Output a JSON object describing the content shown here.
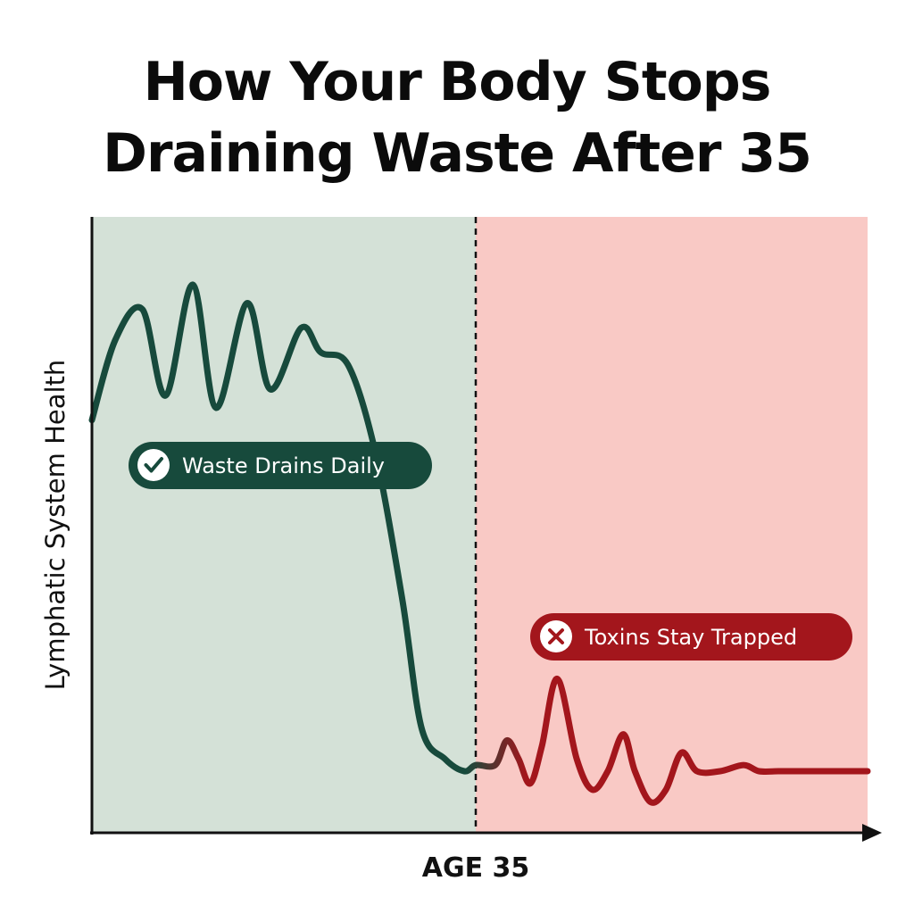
{
  "title_lines": [
    "How Your Body Stops",
    "Draining Waste After 35"
  ],
  "colors": {
    "healthy_zone": "#d4e1d7",
    "decline_zone": "#f9c9c5",
    "healthy_line": "#174a3c",
    "decline_line": "#a3161c",
    "healthy_pill": "#174a3c",
    "decline_pill": "#a3161c",
    "axis": "#111111"
  },
  "icons": [
    "check-circle-icon",
    "x-circle-icon"
  ],
  "chart_data": {
    "type": "line",
    "title": "How Your Body Stops Draining Waste After 35",
    "xlabel": "AGE 35",
    "ylabel": "Lymphatic System Health",
    "marker_label": "AGE 35",
    "grid": false,
    "regions": [
      {
        "name": "before",
        "label": "Waste Drains Daily",
        "icon": "check-circle-icon"
      },
      {
        "name": "after",
        "label": "Toxins Stay Trapped",
        "icon": "x-circle-icon"
      }
    ],
    "series": [
      {
        "x": [
          0,
          0.03,
          0.065,
          0.095,
          0.13,
          0.16,
          0.2,
          0.23,
          0.27,
          0.295,
          0.33,
          0.365,
          0.4,
          0.425,
          0.455,
          0.48,
          0.495,
          0.52,
          0.535,
          0.55,
          0.565,
          0.58,
          0.6,
          0.625,
          0.645,
          0.665,
          0.685,
          0.7,
          0.72,
          0.74,
          0.76,
          0.78,
          0.81,
          0.84,
          0.86,
          0.885,
          0.905,
          0.93,
          0.955,
          0.975,
          1.0
        ],
        "y": [
          0.67,
          0.8,
          0.85,
          0.71,
          0.89,
          0.69,
          0.86,
          0.72,
          0.82,
          0.78,
          0.76,
          0.62,
          0.38,
          0.17,
          0.12,
          0.1,
          0.11,
          0.11,
          0.15,
          0.12,
          0.08,
          0.14,
          0.25,
          0.12,
          0.07,
          0.1,
          0.16,
          0.1,
          0.05,
          0.07,
          0.13,
          0.1,
          0.1,
          0.11,
          0.1,
          0.1,
          0.1,
          0.1,
          0.1,
          0.1,
          0.1
        ]
      }
    ]
  }
}
